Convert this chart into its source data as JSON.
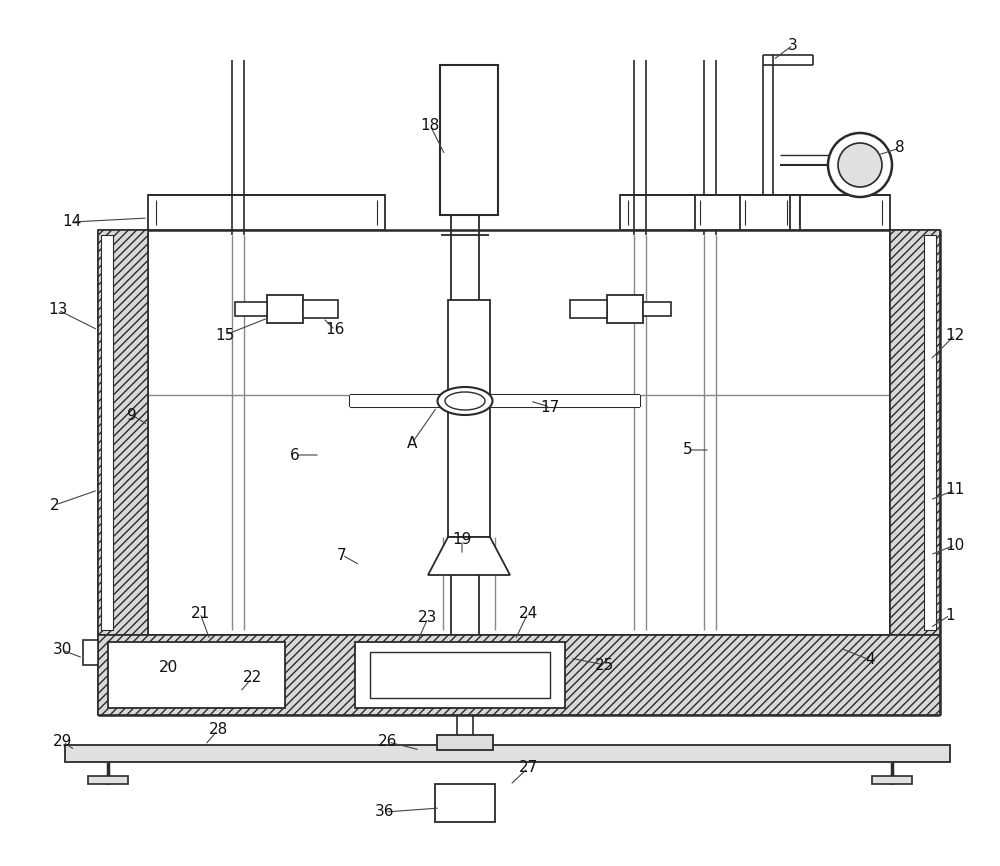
{
  "bg_color": "#ffffff",
  "line_color": "#2a2a2a",
  "hatch_color": "#444444",
  "label_color": "#111111",
  "title": ""
}
